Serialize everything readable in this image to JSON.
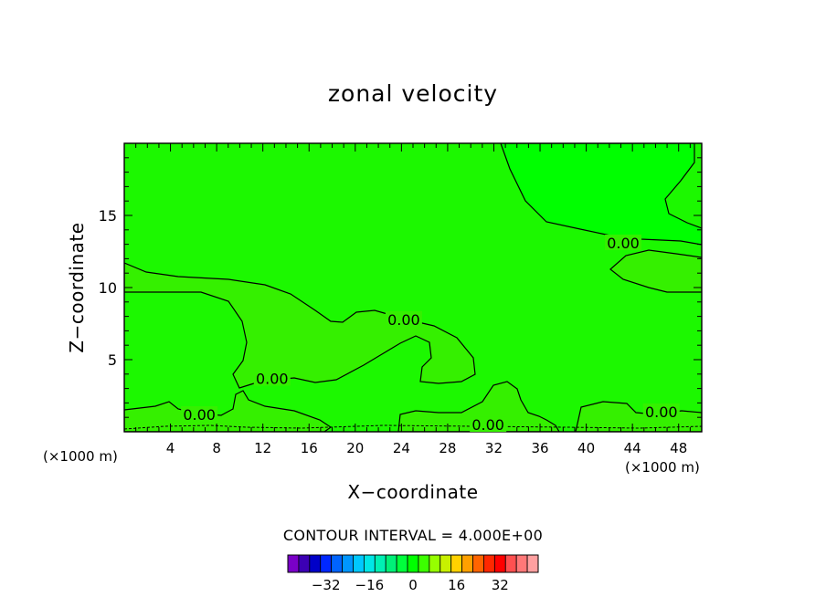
{
  "chart_data": {
    "type": "contour",
    "title": "zonal velocity",
    "xlabel": "X−coordinate",
    "ylabel": "Z−coordinate",
    "x_unit_label": "(×1000 m)",
    "xlim": [
      0,
      50
    ],
    "ylim": [
      0,
      20
    ],
    "x_ticks": [
      4,
      8,
      12,
      16,
      20,
      24,
      28,
      32,
      36,
      40,
      44,
      48
    ],
    "y_ticks": [
      5,
      10,
      15
    ],
    "contour_interval_text": "CONTOUR INTERVAL = 4.000E+00",
    "contour_labels": [
      {
        "text": "0.00",
        "x": 6.5,
        "y": 1.2
      },
      {
        "text": "0.00",
        "x": 12.8,
        "y": 3.7
      },
      {
        "text": "0.00",
        "x": 24.2,
        "y": 7.8
      },
      {
        "text": "0.00",
        "x": 31.5,
        "y": 0.5
      },
      {
        "text": "0.00",
        "x": 43.2,
        "y": 13.1
      },
      {
        "text": "0.00",
        "x": 46.5,
        "y": 1.4
      }
    ],
    "colorbar": {
      "colors": [
        "#7a00c8",
        "#3c00b4",
        "#0000c8",
        "#0028ff",
        "#0064ff",
        "#0096ff",
        "#00c8ff",
        "#00e6e6",
        "#00f0b4",
        "#00f078",
        "#00ff3c",
        "#00ff00",
        "#3cff00",
        "#96ff00",
        "#c8f000",
        "#ffd200",
        "#ffa000",
        "#ff6400",
        "#ff2800",
        "#ff0000",
        "#ff5050",
        "#ff7878",
        "#ffa0a0"
      ],
      "tick_labels": [
        "−32",
        "−16",
        "0",
        "16",
        "32"
      ],
      "tick_values": [
        -32,
        -16,
        0,
        16,
        32
      ]
    },
    "fill_colors": {
      "light_green": "#00ff00",
      "lighter_green": "#35f000",
      "base_green": "#1cf800"
    }
  }
}
